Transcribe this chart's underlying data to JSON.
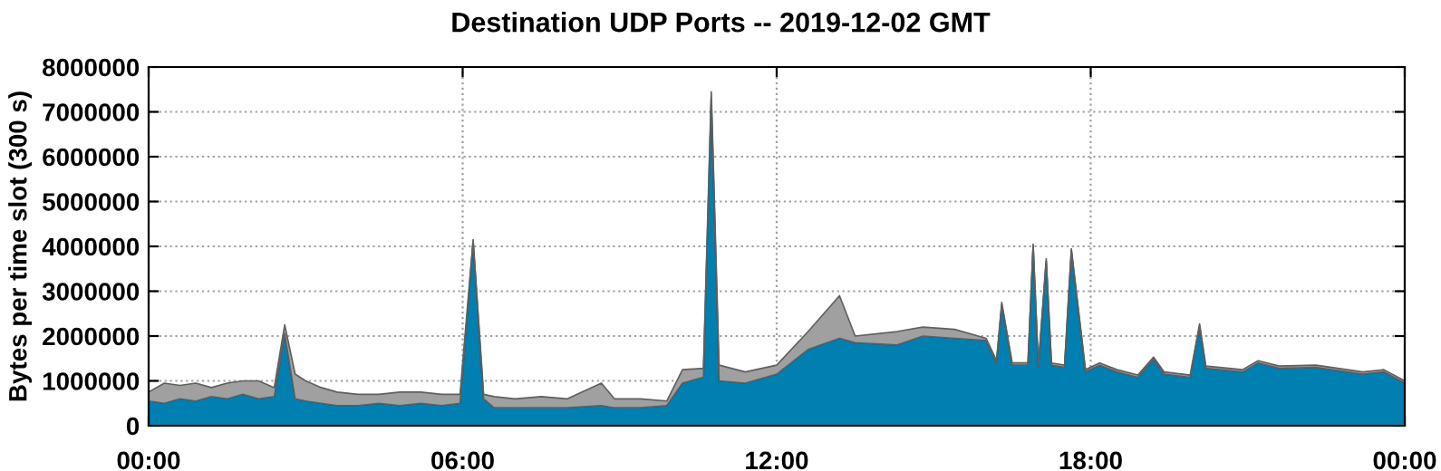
{
  "chart_data": {
    "type": "area",
    "stacked": true,
    "title": "Destination UDP Ports -- 2019-12-02 GMT",
    "ylabel": "Bytes per time slot (300 s)",
    "x": [
      0.0,
      0.3,
      0.6,
      0.9,
      1.2,
      1.5,
      1.8,
      2.1,
      2.4,
      2.6,
      2.8,
      3.0,
      3.3,
      3.6,
      4.0,
      4.4,
      4.8,
      5.2,
      5.6,
      5.95,
      6.2,
      6.4,
      6.6,
      7.0,
      7.5,
      8.0,
      8.65,
      8.9,
      9.4,
      9.9,
      10.2,
      10.6,
      10.75,
      10.9,
      11.4,
      12.0,
      12.6,
      13.2,
      13.5,
      14.3,
      14.8,
      15.4,
      16.0,
      16.2,
      16.3,
      16.5,
      16.8,
      16.9,
      17.0,
      17.15,
      17.25,
      17.5,
      17.63,
      17.9,
      18.17,
      18.5,
      18.9,
      19.2,
      19.4,
      19.9,
      20.08,
      20.2,
      20.9,
      21.2,
      21.6,
      22.3,
      23.2,
      23.6,
      24.0
    ],
    "series": [
      {
        "color": "#0080b0",
        "values": [
          550000,
          500000,
          600000,
          550000,
          650000,
          600000,
          700000,
          600000,
          650000,
          2050000,
          600000,
          550000,
          500000,
          450000,
          450000,
          500000,
          450000,
          500000,
          450000,
          500000,
          4100000,
          600000,
          400000,
          400000,
          400000,
          400000,
          450000,
          400000,
          400000,
          450000,
          950000,
          1080000,
          7300000,
          1000000,
          950000,
          1150000,
          1700000,
          1950000,
          1850000,
          1800000,
          2000000,
          1950000,
          1900000,
          1400000,
          2700000,
          1350000,
          1350000,
          4000000,
          1300000,
          3670000,
          1350000,
          1300000,
          3900000,
          1200000,
          1350000,
          1200000,
          1080000,
          1480000,
          1150000,
          1080000,
          2220000,
          1280000,
          1200000,
          1400000,
          1280000,
          1300000,
          1150000,
          1200000,
          950000
        ]
      },
      {
        "color": "#a0a0a0",
        "values": [
          200000,
          450000,
          300000,
          400000,
          200000,
          350000,
          300000,
          400000,
          200000,
          200000,
          550000,
          450000,
          350000,
          300000,
          250000,
          200000,
          300000,
          250000,
          250000,
          200000,
          50000,
          100000,
          250000,
          200000,
          250000,
          200000,
          500000,
          200000,
          200000,
          100000,
          300000,
          200000,
          150000,
          350000,
          250000,
          200000,
          400000,
          950000,
          150000,
          300000,
          200000,
          200000,
          50000,
          50000,
          50000,
          50000,
          50000,
          50000,
          50000,
          50000,
          50000,
          50000,
          50000,
          50000,
          50000,
          50000,
          50000,
          50000,
          50000,
          50000,
          50000,
          50000,
          50000,
          50000,
          50000,
          50000,
          50000,
          50000,
          50000
        ]
      }
    ],
    "xlim": [
      0,
      24
    ],
    "ylim": [
      0,
      8000000
    ],
    "xticks": [
      {
        "value": 0,
        "label": "00:00"
      },
      {
        "value": 6,
        "label": "06:00"
      },
      {
        "value": 12,
        "label": "12:00"
      },
      {
        "value": 18,
        "label": "18:00"
      },
      {
        "value": 24,
        "label": "00:00"
      }
    ],
    "yticks": [
      0,
      1000000,
      2000000,
      3000000,
      4000000,
      5000000,
      6000000,
      7000000,
      8000000
    ],
    "grid": true,
    "line_style": "dotted"
  }
}
